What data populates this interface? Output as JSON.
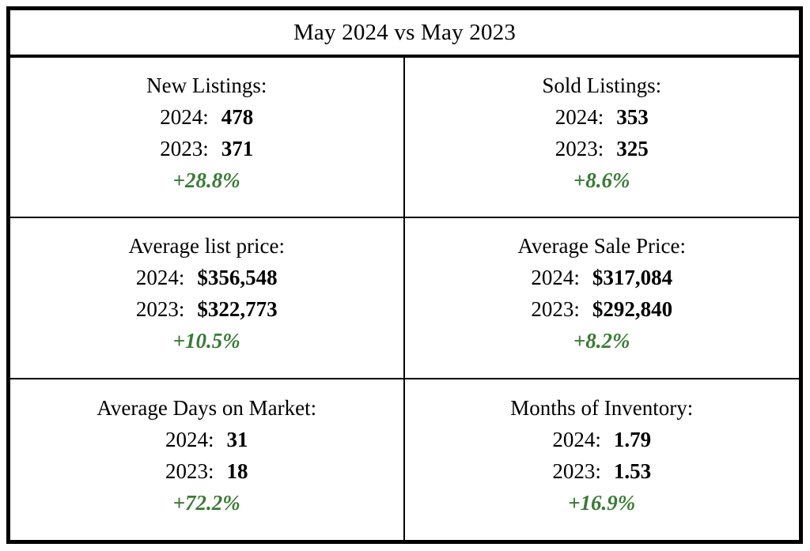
{
  "title": "May 2024 vs May 2023",
  "colors": {
    "positive_change": "#3A7A35",
    "border": "#000000",
    "text": "#000000",
    "background": "#FFFFFF"
  },
  "years": {
    "current": "2024:",
    "previous": "2023:"
  },
  "metrics": [
    {
      "label": "New Listings:",
      "v2024": "478",
      "v2023": "371",
      "change": "+28.8%"
    },
    {
      "label": "Sold Listings:",
      "v2024": "353",
      "v2023": "325",
      "change": "+8.6%"
    },
    {
      "label": "Average list price:",
      "v2024": "$356,548",
      "v2023": "$322,773",
      "change": "+10.5%"
    },
    {
      "label": "Average Sale Price:",
      "v2024": "$317,084",
      "v2023": "$292,840",
      "change": "+8.2%"
    },
    {
      "label": "Average Days on Market:",
      "v2024": "31",
      "v2023": "18",
      "change": "+72.2%"
    },
    {
      "label": "Months of Inventory:",
      "v2024": "1.79",
      "v2023": "1.53",
      "change": "+16.9%"
    }
  ],
  "chart_data": {
    "type": "table",
    "title": "May 2024 vs May 2023",
    "categories": [
      "New Listings",
      "Sold Listings",
      "Average list price",
      "Average Sale Price",
      "Average Days on Market",
      "Months of Inventory"
    ],
    "series": [
      {
        "name": "2024",
        "values": [
          478,
          353,
          356548,
          317084,
          31,
          1.79
        ]
      },
      {
        "name": "2023",
        "values": [
          371,
          325,
          322773,
          292840,
          18,
          1.53
        ]
      }
    ],
    "percent_change": [
      28.8,
      8.6,
      10.5,
      8.2,
      72.2,
      16.9
    ],
    "layout": "2-column grid table, header row spanning both columns, percent changes shown in green bold italic"
  }
}
